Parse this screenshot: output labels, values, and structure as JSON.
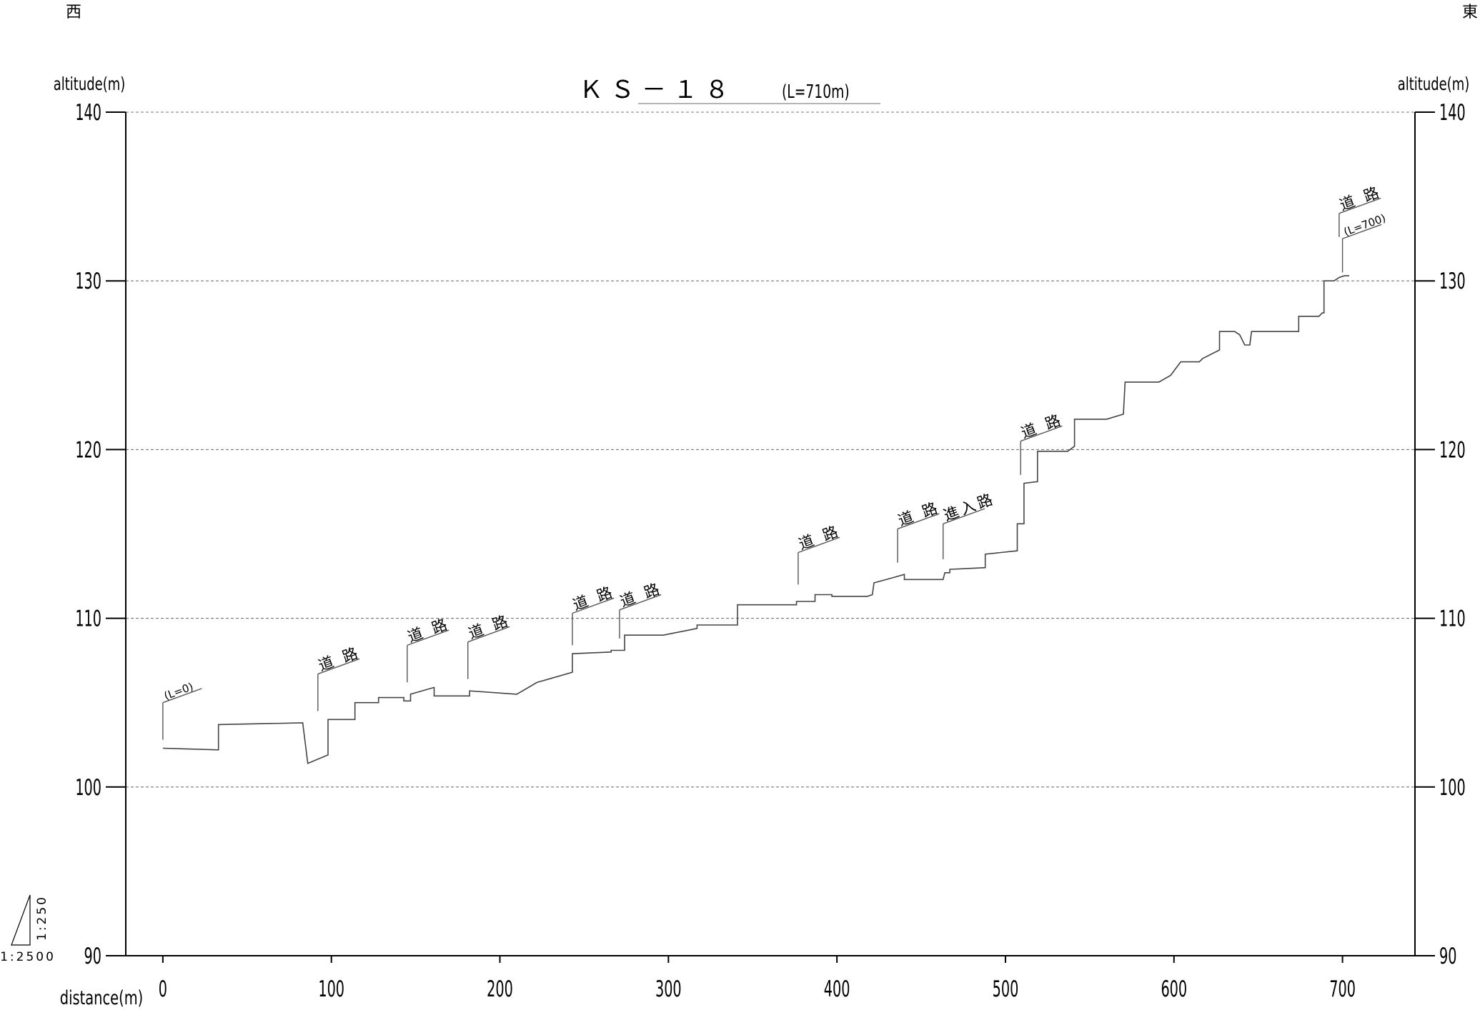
{
  "page": {
    "west_label": "西",
    "east_label": "東",
    "scale_vertical": "1:250",
    "scale_horizontal": "1:2500"
  },
  "chart_data": {
    "type": "line",
    "title": "ＫＳ－１８",
    "title_suffix": "(L=710m)",
    "ylabel_left": "altitude(m)",
    "ylabel_right": "altitude(m)",
    "xlabel": "distance(m)",
    "ylim": [
      90,
      140
    ],
    "xlim": [
      -22,
      743
    ],
    "y_ticks": [
      90,
      100,
      110,
      120,
      130,
      140
    ],
    "x_ticks": [
      0,
      100,
      200,
      300,
      400,
      500,
      600,
      700
    ],
    "grid": "horizontal dashed",
    "series": [
      {
        "points": [
          [
            0,
            102.3
          ],
          [
            33,
            102.2
          ],
          [
            33,
            103.7
          ],
          [
            83,
            103.8
          ],
          [
            86,
            101.4
          ],
          [
            98,
            101.9
          ],
          [
            98,
            104.0
          ],
          [
            114,
            104.0
          ],
          [
            114,
            105.0
          ],
          [
            128,
            105.0
          ],
          [
            128,
            105.3
          ],
          [
            143,
            105.3
          ],
          [
            143,
            105.1
          ],
          [
            147,
            105.1
          ],
          [
            147,
            105.5
          ],
          [
            161,
            105.9
          ],
          [
            161,
            105.4
          ],
          [
            182,
            105.4
          ],
          [
            182,
            105.7
          ],
          [
            210,
            105.5
          ],
          [
            222,
            106.2
          ],
          [
            243,
            106.8
          ],
          [
            243,
            107.9
          ],
          [
            266,
            108.0
          ],
          [
            266,
            108.1
          ],
          [
            274,
            108.1
          ],
          [
            274,
            109.0
          ],
          [
            297,
            109.0
          ],
          [
            317,
            109.4
          ],
          [
            317,
            109.6
          ],
          [
            341,
            109.6
          ],
          [
            341,
            110.8
          ],
          [
            376,
            110.8
          ],
          [
            376,
            111.0
          ],
          [
            387,
            111.0
          ],
          [
            387,
            111.4
          ],
          [
            397,
            111.4
          ],
          [
            397,
            111.3
          ],
          [
            418,
            111.3
          ],
          [
            421,
            111.4
          ],
          [
            422,
            112.1
          ],
          [
            433,
            112.4
          ],
          [
            440,
            112.6
          ],
          [
            440,
            112.3
          ],
          [
            463,
            112.3
          ],
          [
            464,
            112.7
          ],
          [
            467,
            112.7
          ],
          [
            467,
            112.9
          ],
          [
            488,
            113.0
          ],
          [
            488,
            113.8
          ],
          [
            507,
            114.0
          ],
          [
            507,
            115.6
          ],
          [
            511,
            115.6
          ],
          [
            511,
            118.0
          ],
          [
            519,
            118.1
          ],
          [
            519,
            119.9
          ],
          [
            537,
            119.9
          ],
          [
            541,
            120.2
          ],
          [
            541,
            121.8
          ],
          [
            560,
            121.8
          ],
          [
            570,
            122.1
          ],
          [
            571,
            124.0
          ],
          [
            591,
            124.0
          ],
          [
            598,
            124.4
          ],
          [
            604,
            125.2
          ],
          [
            615,
            125.2
          ],
          [
            617,
            125.4
          ],
          [
            627,
            125.9
          ],
          [
            627,
            127.0
          ],
          [
            636,
            127.0
          ],
          [
            639,
            126.8
          ],
          [
            642,
            126.2
          ],
          [
            645,
            126.2
          ],
          [
            646,
            127.0
          ],
          [
            674,
            127.0
          ],
          [
            674,
            127.9
          ],
          [
            686,
            127.9
          ],
          [
            688,
            128.1
          ],
          [
            689,
            128.1
          ],
          [
            689,
            130.0
          ],
          [
            695,
            130.0
          ],
          [
            698,
            130.2
          ],
          [
            701,
            130.3
          ],
          [
            704,
            130.3
          ]
        ]
      }
    ],
    "annotations": [
      {
        "x": 0,
        "base": 102.8,
        "top": 105.0,
        "text": "(L=0)",
        "small": true
      },
      {
        "x": 92,
        "base": 104.5,
        "top": 106.7,
        "text": "道 路"
      },
      {
        "x": 145,
        "base": 106.2,
        "top": 108.4,
        "text": "道 路"
      },
      {
        "x": 181,
        "base": 106.4,
        "top": 108.6,
        "text": "道 路"
      },
      {
        "x": 243,
        "base": 108.4,
        "top": 110.3,
        "text": "道 路"
      },
      {
        "x": 271,
        "base": 108.8,
        "top": 110.5,
        "text": "道 路"
      },
      {
        "x": 377,
        "base": 112.0,
        "top": 113.9,
        "text": "道 路"
      },
      {
        "x": 436,
        "base": 113.3,
        "top": 115.3,
        "text": "道 路"
      },
      {
        "x": 463,
        "base": 113.5,
        "top": 115.6,
        "text": "進入路"
      },
      {
        "x": 509,
        "base": 118.5,
        "top": 120.5,
        "text": "道 路"
      },
      {
        "x": 698,
        "base": 132.6,
        "top": 134.0,
        "text": "道 路"
      },
      {
        "x": 700,
        "base": 130.5,
        "top": 132.5,
        "text": "(L=700)",
        "small": true
      }
    ]
  }
}
